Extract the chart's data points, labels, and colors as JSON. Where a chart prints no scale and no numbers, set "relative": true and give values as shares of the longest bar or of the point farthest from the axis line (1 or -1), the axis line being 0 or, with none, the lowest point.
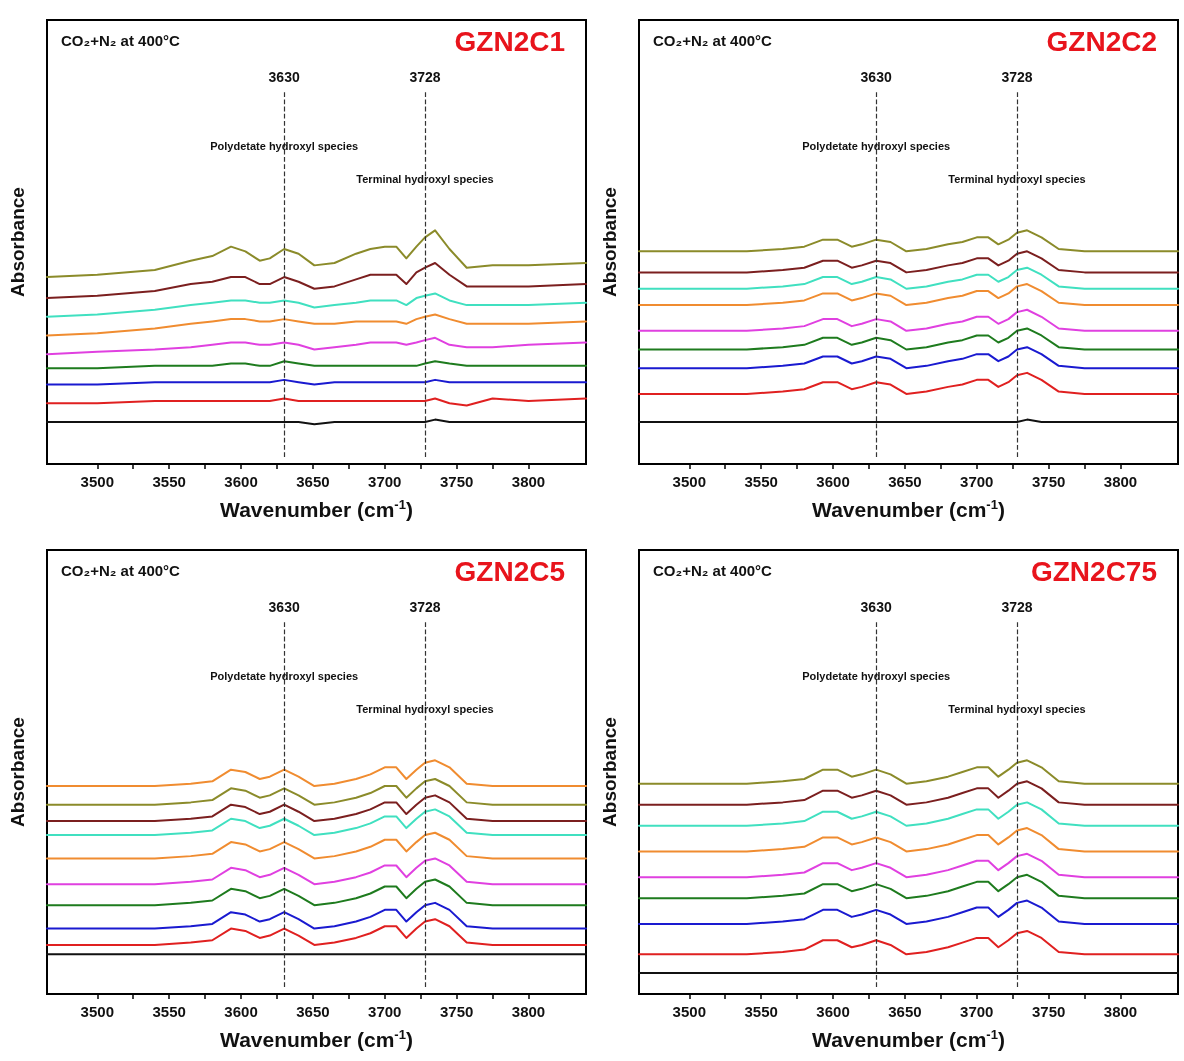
{
  "chart_data": [
    {
      "type": "line",
      "relative": true,
      "title": "GZN2C1",
      "subtitle": "CO₂+N₂ at 400°C",
      "xlabel": "Wavenumber (cm$^{-1}$)",
      "ylabel": "Absorbance",
      "xlim": [
        3465,
        3840
      ],
      "xticks": [
        3500,
        3550,
        3600,
        3650,
        3700,
        3750,
        3800
      ],
      "tick_labels": "x",
      "marker": "none",
      "line_style": "solid",
      "x": [
        3465,
        3500,
        3540,
        3565,
        3580,
        3593,
        3603,
        3613,
        3620,
        3630,
        3640,
        3651,
        3665,
        3680,
        3690,
        3700,
        3708,
        3715,
        3722,
        3728,
        3735,
        3745,
        3757,
        3775,
        3800,
        3840
      ],
      "ref_lines": [
        {
          "axis": "x",
          "value": 3630,
          "label": "3630",
          "line_style": "dashed",
          "color": "#333333"
        },
        {
          "axis": "x",
          "value": 3728,
          "label": "3728",
          "line_style": "dashed",
          "color": "#333333"
        }
      ],
      "annotations": [
        "Polydetate hydroxyl species",
        "Terminal hydroxyl species"
      ],
      "series": [
        {
          "color": "#8b8b2a",
          "values": [
            0.8,
            0.81,
            0.83,
            0.87,
            0.89,
            0.93,
            0.91,
            0.87,
            0.88,
            0.92,
            0.9,
            0.85,
            0.86,
            0.9,
            0.92,
            0.93,
            0.93,
            0.88,
            0.93,
            0.97,
            1.0,
            0.92,
            0.84,
            0.85,
            0.85,
            0.86
          ]
        },
        {
          "color": "#7b1f1f",
          "values": [
            0.71,
            0.72,
            0.74,
            0.77,
            0.78,
            0.8,
            0.8,
            0.77,
            0.77,
            0.8,
            0.78,
            0.75,
            0.76,
            0.79,
            0.81,
            0.81,
            0.81,
            0.77,
            0.82,
            0.84,
            0.86,
            0.81,
            0.76,
            0.76,
            0.76,
            0.77
          ]
        },
        {
          "color": "#40e0c0",
          "values": [
            0.63,
            0.64,
            0.66,
            0.68,
            0.69,
            0.7,
            0.7,
            0.69,
            0.69,
            0.7,
            0.69,
            0.67,
            0.68,
            0.69,
            0.7,
            0.7,
            0.7,
            0.68,
            0.71,
            0.72,
            0.73,
            0.7,
            0.68,
            0.68,
            0.68,
            0.69
          ]
        },
        {
          "color": "#f08c30",
          "values": [
            0.55,
            0.56,
            0.58,
            0.6,
            0.61,
            0.62,
            0.62,
            0.61,
            0.61,
            0.62,
            0.61,
            0.6,
            0.6,
            0.61,
            0.61,
            0.61,
            0.61,
            0.6,
            0.62,
            0.63,
            0.64,
            0.62,
            0.6,
            0.6,
            0.6,
            0.61
          ]
        },
        {
          "color": "#e040e0",
          "values": [
            0.47,
            0.48,
            0.49,
            0.5,
            0.51,
            0.52,
            0.52,
            0.51,
            0.51,
            0.52,
            0.51,
            0.49,
            0.5,
            0.51,
            0.52,
            0.52,
            0.52,
            0.51,
            0.52,
            0.53,
            0.54,
            0.51,
            0.5,
            0.5,
            0.51,
            0.52
          ]
        },
        {
          "color": "#1e7b1e",
          "values": [
            0.41,
            0.41,
            0.42,
            0.42,
            0.42,
            0.43,
            0.43,
            0.42,
            0.42,
            0.44,
            0.43,
            0.42,
            0.42,
            0.42,
            0.42,
            0.42,
            0.42,
            0.42,
            0.42,
            0.43,
            0.44,
            0.43,
            0.42,
            0.42,
            0.42,
            0.42
          ]
        },
        {
          "color": "#1a1ad0",
          "values": [
            0.34,
            0.34,
            0.35,
            0.35,
            0.35,
            0.35,
            0.35,
            0.35,
            0.35,
            0.36,
            0.35,
            0.34,
            0.35,
            0.35,
            0.35,
            0.35,
            0.35,
            0.35,
            0.35,
            0.35,
            0.36,
            0.35,
            0.35,
            0.35,
            0.35,
            0.35
          ]
        },
        {
          "color": "#e02020",
          "values": [
            0.26,
            0.26,
            0.27,
            0.27,
            0.27,
            0.27,
            0.27,
            0.27,
            0.27,
            0.28,
            0.27,
            0.27,
            0.27,
            0.27,
            0.27,
            0.27,
            0.27,
            0.27,
            0.27,
            0.27,
            0.28,
            0.26,
            0.25,
            0.28,
            0.27,
            0.28
          ]
        },
        {
          "color": "#111111",
          "values": [
            0.18,
            0.18,
            0.18,
            0.18,
            0.18,
            0.18,
            0.18,
            0.18,
            0.18,
            0.18,
            0.18,
            0.17,
            0.18,
            0.18,
            0.18,
            0.18,
            0.18,
            0.18,
            0.18,
            0.18,
            0.19,
            0.18,
            0.18,
            0.18,
            0.18,
            0.18
          ]
        }
      ]
    },
    {
      "type": "line",
      "relative": true,
      "title": "GZN2C2",
      "subtitle": "CO₂+N₂ at 400°C",
      "xlabel": "Wavenumber (cm$^{-1}$)",
      "ylabel": "Absorbance",
      "xlim": [
        3465,
        3840
      ],
      "xticks": [
        3500,
        3550,
        3600,
        3650,
        3700,
        3750,
        3800
      ],
      "tick_labels": "x",
      "marker": "none",
      "line_style": "solid",
      "x": [
        3465,
        3500,
        3540,
        3565,
        3580,
        3593,
        3603,
        3613,
        3620,
        3630,
        3640,
        3651,
        3665,
        3680,
        3690,
        3700,
        3708,
        3715,
        3722,
        3728,
        3735,
        3745,
        3757,
        3775,
        3800,
        3840
      ],
      "ref_lines": [
        {
          "axis": "x",
          "value": 3630,
          "label": "3630",
          "line_style": "dashed",
          "color": "#333333"
        },
        {
          "axis": "x",
          "value": 3728,
          "label": "3728",
          "line_style": "dashed",
          "color": "#333333"
        }
      ],
      "annotations": [
        "Polydetate hydroxyl species",
        "Terminal hydroxyl species"
      ],
      "series": [
        {
          "color": "#8b8b2a",
          "values": [
            0.91,
            0.91,
            0.91,
            0.92,
            0.93,
            0.96,
            0.96,
            0.93,
            0.94,
            0.96,
            0.95,
            0.91,
            0.92,
            0.94,
            0.95,
            0.97,
            0.97,
            0.94,
            0.96,
            0.99,
            1.0,
            0.97,
            0.92,
            0.91,
            0.91,
            0.91
          ]
        },
        {
          "color": "#7b1f1f",
          "values": [
            0.82,
            0.82,
            0.82,
            0.83,
            0.84,
            0.87,
            0.87,
            0.84,
            0.85,
            0.87,
            0.86,
            0.82,
            0.83,
            0.85,
            0.86,
            0.88,
            0.88,
            0.85,
            0.87,
            0.9,
            0.91,
            0.88,
            0.83,
            0.82,
            0.82,
            0.82
          ]
        },
        {
          "color": "#40e0c0",
          "values": [
            0.75,
            0.75,
            0.75,
            0.76,
            0.77,
            0.8,
            0.8,
            0.77,
            0.78,
            0.8,
            0.79,
            0.75,
            0.76,
            0.78,
            0.79,
            0.81,
            0.81,
            0.78,
            0.8,
            0.83,
            0.84,
            0.81,
            0.76,
            0.75,
            0.75,
            0.75
          ]
        },
        {
          "color": "#f08c30",
          "values": [
            0.68,
            0.68,
            0.68,
            0.69,
            0.7,
            0.73,
            0.73,
            0.7,
            0.71,
            0.73,
            0.72,
            0.68,
            0.69,
            0.71,
            0.72,
            0.74,
            0.74,
            0.71,
            0.73,
            0.76,
            0.77,
            0.74,
            0.69,
            0.68,
            0.68,
            0.68
          ]
        },
        {
          "color": "#e040e0",
          "values": [
            0.57,
            0.57,
            0.57,
            0.58,
            0.59,
            0.62,
            0.62,
            0.59,
            0.6,
            0.62,
            0.61,
            0.57,
            0.58,
            0.6,
            0.61,
            0.63,
            0.63,
            0.6,
            0.62,
            0.65,
            0.66,
            0.63,
            0.58,
            0.57,
            0.57,
            0.57
          ]
        },
        {
          "color": "#1e7b1e",
          "values": [
            0.49,
            0.49,
            0.49,
            0.5,
            0.51,
            0.54,
            0.54,
            0.51,
            0.52,
            0.54,
            0.53,
            0.49,
            0.5,
            0.52,
            0.53,
            0.55,
            0.55,
            0.52,
            0.54,
            0.57,
            0.58,
            0.55,
            0.5,
            0.49,
            0.49,
            0.49
          ]
        },
        {
          "color": "#1a1ad0",
          "values": [
            0.41,
            0.41,
            0.41,
            0.42,
            0.43,
            0.46,
            0.46,
            0.43,
            0.44,
            0.46,
            0.45,
            0.41,
            0.42,
            0.44,
            0.45,
            0.47,
            0.47,
            0.44,
            0.46,
            0.49,
            0.5,
            0.47,
            0.42,
            0.41,
            0.41,
            0.41
          ]
        },
        {
          "color": "#e02020",
          "values": [
            0.3,
            0.3,
            0.3,
            0.31,
            0.32,
            0.35,
            0.35,
            0.32,
            0.33,
            0.35,
            0.34,
            0.3,
            0.31,
            0.33,
            0.34,
            0.36,
            0.36,
            0.33,
            0.35,
            0.38,
            0.39,
            0.36,
            0.31,
            0.3,
            0.3,
            0.3
          ]
        },
        {
          "color": "#111111",
          "values": [
            0.18,
            0.18,
            0.18,
            0.18,
            0.18,
            0.18,
            0.18,
            0.18,
            0.18,
            0.18,
            0.18,
            0.18,
            0.18,
            0.18,
            0.18,
            0.18,
            0.18,
            0.18,
            0.18,
            0.18,
            0.19,
            0.18,
            0.18,
            0.18,
            0.18,
            0.18
          ]
        }
      ]
    },
    {
      "type": "line",
      "relative": true,
      "title": "GZN2C5",
      "subtitle": "CO₂+N₂ at 400°C",
      "xlabel": "Wavenumber (cm$^{-1}$)",
      "ylabel": "Absorbance",
      "xlim": [
        3465,
        3840
      ],
      "xticks": [
        3500,
        3550,
        3600,
        3650,
        3700,
        3750,
        3800
      ],
      "tick_labels": "x",
      "marker": "none",
      "line_style": "solid",
      "x": [
        3465,
        3500,
        3540,
        3565,
        3580,
        3593,
        3603,
        3613,
        3620,
        3630,
        3640,
        3651,
        3665,
        3680,
        3690,
        3700,
        3708,
        3715,
        3722,
        3728,
        3735,
        3745,
        3757,
        3775,
        3800,
        3840
      ],
      "ref_lines": [
        {
          "axis": "x",
          "value": 3630,
          "label": "3630",
          "line_style": "dashed",
          "color": "#333333"
        },
        {
          "axis": "x",
          "value": 3728,
          "label": "3728",
          "line_style": "dashed",
          "color": "#333333"
        }
      ],
      "annotations": [
        "Polydetate hydroxyl species",
        "Terminal hydroxyl species"
      ],
      "series": [
        {
          "color": "#f08c30",
          "values": [
            0.89,
            0.89,
            0.89,
            0.9,
            0.91,
            0.96,
            0.95,
            0.92,
            0.93,
            0.96,
            0.93,
            0.89,
            0.9,
            0.92,
            0.94,
            0.97,
            0.97,
            0.92,
            0.96,
            0.99,
            1.0,
            0.97,
            0.9,
            0.89,
            0.89,
            0.89
          ]
        },
        {
          "color": "#8b8b2a",
          "values": [
            0.81,
            0.81,
            0.81,
            0.82,
            0.83,
            0.88,
            0.87,
            0.84,
            0.85,
            0.88,
            0.85,
            0.81,
            0.82,
            0.84,
            0.86,
            0.89,
            0.89,
            0.84,
            0.88,
            0.91,
            0.92,
            0.89,
            0.82,
            0.81,
            0.81,
            0.81
          ]
        },
        {
          "color": "#7b1f1f",
          "values": [
            0.74,
            0.74,
            0.74,
            0.75,
            0.76,
            0.81,
            0.8,
            0.77,
            0.78,
            0.81,
            0.78,
            0.74,
            0.75,
            0.77,
            0.79,
            0.82,
            0.82,
            0.77,
            0.81,
            0.84,
            0.85,
            0.82,
            0.75,
            0.74,
            0.74,
            0.74
          ]
        },
        {
          "color": "#40e0c0",
          "values": [
            0.68,
            0.68,
            0.68,
            0.69,
            0.7,
            0.75,
            0.74,
            0.71,
            0.72,
            0.75,
            0.72,
            0.68,
            0.69,
            0.71,
            0.73,
            0.76,
            0.76,
            0.71,
            0.75,
            0.78,
            0.79,
            0.76,
            0.69,
            0.68,
            0.68,
            0.68
          ]
        },
        {
          "color": "#f08c30",
          "values": [
            0.58,
            0.58,
            0.58,
            0.59,
            0.6,
            0.65,
            0.64,
            0.61,
            0.62,
            0.65,
            0.62,
            0.58,
            0.59,
            0.61,
            0.63,
            0.66,
            0.66,
            0.61,
            0.65,
            0.68,
            0.69,
            0.66,
            0.59,
            0.58,
            0.58,
            0.58
          ]
        },
        {
          "color": "#e040e0",
          "values": [
            0.47,
            0.47,
            0.47,
            0.48,
            0.49,
            0.54,
            0.53,
            0.5,
            0.51,
            0.54,
            0.51,
            0.47,
            0.48,
            0.5,
            0.52,
            0.55,
            0.55,
            0.5,
            0.54,
            0.57,
            0.58,
            0.55,
            0.48,
            0.47,
            0.47,
            0.47
          ]
        },
        {
          "color": "#1e7b1e",
          "values": [
            0.38,
            0.38,
            0.38,
            0.39,
            0.4,
            0.45,
            0.44,
            0.41,
            0.42,
            0.45,
            0.42,
            0.38,
            0.39,
            0.41,
            0.43,
            0.46,
            0.46,
            0.41,
            0.45,
            0.48,
            0.49,
            0.46,
            0.39,
            0.38,
            0.38,
            0.38
          ]
        },
        {
          "color": "#1a1ad0",
          "values": [
            0.28,
            0.28,
            0.28,
            0.29,
            0.3,
            0.35,
            0.34,
            0.31,
            0.32,
            0.35,
            0.32,
            0.28,
            0.29,
            0.31,
            0.33,
            0.36,
            0.36,
            0.31,
            0.35,
            0.38,
            0.39,
            0.36,
            0.29,
            0.28,
            0.28,
            0.28
          ]
        },
        {
          "color": "#e02020",
          "values": [
            0.21,
            0.21,
            0.21,
            0.22,
            0.23,
            0.28,
            0.27,
            0.24,
            0.25,
            0.28,
            0.25,
            0.21,
            0.22,
            0.24,
            0.26,
            0.29,
            0.29,
            0.24,
            0.28,
            0.31,
            0.32,
            0.29,
            0.22,
            0.21,
            0.21,
            0.21
          ]
        },
        {
          "color": "#111111",
          "values": [
            0.17,
            0.17,
            0.17,
            0.17,
            0.17,
            0.17,
            0.17,
            0.17,
            0.17,
            0.17,
            0.17,
            0.17,
            0.17,
            0.17,
            0.17,
            0.17,
            0.17,
            0.17,
            0.17,
            0.17,
            0.17,
            0.17,
            0.17,
            0.17,
            0.17,
            0.17
          ]
        }
      ]
    },
    {
      "type": "line",
      "relative": true,
      "title": "GZN2C75",
      "subtitle": "CO₂+N₂ at 400°C",
      "xlabel": "Wavenumber (cm$^{-1}$)",
      "ylabel": "Absorbance",
      "xlim": [
        3465,
        3840
      ],
      "xticks": [
        3500,
        3550,
        3600,
        3650,
        3700,
        3750,
        3800
      ],
      "tick_labels": "x",
      "marker": "none",
      "line_style": "solid",
      "x": [
        3465,
        3500,
        3540,
        3565,
        3580,
        3593,
        3603,
        3613,
        3620,
        3630,
        3640,
        3651,
        3665,
        3680,
        3690,
        3700,
        3708,
        3715,
        3722,
        3728,
        3735,
        3745,
        3757,
        3775,
        3800,
        3840
      ],
      "ref_lines": [
        {
          "axis": "x",
          "value": 3630,
          "label": "3630",
          "line_style": "dashed",
          "color": "#333333"
        },
        {
          "axis": "x",
          "value": 3728,
          "label": "3728",
          "line_style": "dashed",
          "color": "#333333"
        }
      ],
      "annotations": [
        "Polydetate hydroxyl species",
        "Terminal hydroxyl species"
      ],
      "series": [
        {
          "color": "#8b8b2a",
          "values": [
            0.9,
            0.9,
            0.9,
            0.91,
            0.92,
            0.96,
            0.96,
            0.93,
            0.94,
            0.96,
            0.94,
            0.9,
            0.91,
            0.93,
            0.95,
            0.97,
            0.97,
            0.93,
            0.96,
            0.99,
            1.0,
            0.97,
            0.91,
            0.9,
            0.9,
            0.9
          ]
        },
        {
          "color": "#7b1f1f",
          "values": [
            0.81,
            0.81,
            0.81,
            0.82,
            0.83,
            0.87,
            0.87,
            0.84,
            0.85,
            0.87,
            0.85,
            0.81,
            0.82,
            0.84,
            0.86,
            0.88,
            0.88,
            0.84,
            0.87,
            0.9,
            0.91,
            0.88,
            0.82,
            0.81,
            0.81,
            0.81
          ]
        },
        {
          "color": "#40e0c0",
          "values": [
            0.72,
            0.72,
            0.72,
            0.73,
            0.74,
            0.78,
            0.78,
            0.75,
            0.76,
            0.78,
            0.76,
            0.72,
            0.73,
            0.75,
            0.77,
            0.79,
            0.79,
            0.75,
            0.78,
            0.81,
            0.82,
            0.79,
            0.73,
            0.72,
            0.72,
            0.72
          ]
        },
        {
          "color": "#f08c30",
          "values": [
            0.61,
            0.61,
            0.61,
            0.62,
            0.63,
            0.67,
            0.67,
            0.64,
            0.65,
            0.67,
            0.65,
            0.61,
            0.62,
            0.64,
            0.66,
            0.68,
            0.68,
            0.64,
            0.67,
            0.7,
            0.71,
            0.68,
            0.62,
            0.61,
            0.61,
            0.61
          ]
        },
        {
          "color": "#e040e0",
          "values": [
            0.5,
            0.5,
            0.5,
            0.51,
            0.52,
            0.56,
            0.56,
            0.53,
            0.54,
            0.56,
            0.54,
            0.5,
            0.51,
            0.53,
            0.55,
            0.57,
            0.57,
            0.53,
            0.56,
            0.59,
            0.6,
            0.57,
            0.51,
            0.5,
            0.5,
            0.5
          ]
        },
        {
          "color": "#1e7b1e",
          "values": [
            0.41,
            0.41,
            0.41,
            0.42,
            0.43,
            0.47,
            0.47,
            0.44,
            0.45,
            0.47,
            0.45,
            0.41,
            0.42,
            0.44,
            0.46,
            0.48,
            0.48,
            0.44,
            0.47,
            0.5,
            0.51,
            0.48,
            0.42,
            0.41,
            0.41,
            0.41
          ]
        },
        {
          "color": "#1a1ad0",
          "values": [
            0.3,
            0.3,
            0.3,
            0.31,
            0.32,
            0.36,
            0.36,
            0.33,
            0.34,
            0.36,
            0.34,
            0.3,
            0.31,
            0.33,
            0.35,
            0.37,
            0.37,
            0.33,
            0.36,
            0.39,
            0.4,
            0.37,
            0.31,
            0.3,
            0.3,
            0.3
          ]
        },
        {
          "color": "#e02020",
          "values": [
            0.17,
            0.17,
            0.17,
            0.18,
            0.19,
            0.23,
            0.23,
            0.2,
            0.21,
            0.23,
            0.21,
            0.17,
            0.18,
            0.2,
            0.22,
            0.24,
            0.24,
            0.2,
            0.23,
            0.26,
            0.27,
            0.24,
            0.18,
            0.17,
            0.17,
            0.17
          ]
        },
        {
          "color": "#111111",
          "values": [
            0.09,
            0.09,
            0.09,
            0.09,
            0.09,
            0.09,
            0.09,
            0.09,
            0.09,
            0.09,
            0.09,
            0.09,
            0.09,
            0.09,
            0.09,
            0.09,
            0.09,
            0.09,
            0.09,
            0.09,
            0.09,
            0.09,
            0.09,
            0.09,
            0.09,
            0.09
          ]
        }
      ]
    }
  ]
}
